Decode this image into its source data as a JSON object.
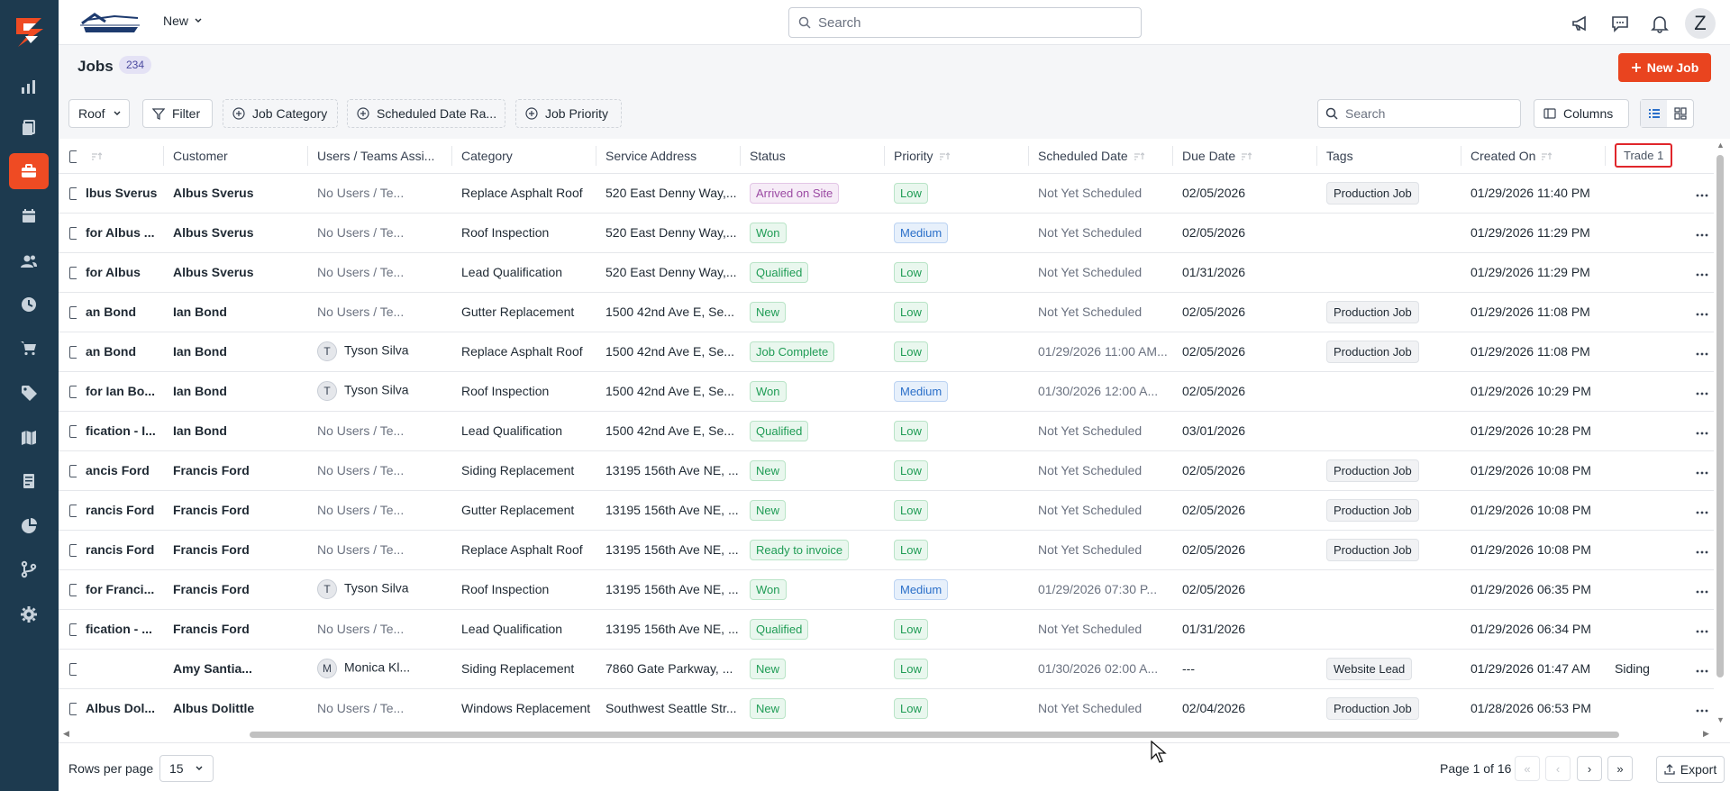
{
  "brand": {
    "new_menu_label": "New"
  },
  "top_search": {
    "placeholder": "Search"
  },
  "user": {
    "initial": "Z"
  },
  "page": {
    "title": "Jobs",
    "count": "234",
    "new_job_label": "New Job"
  },
  "filters": {
    "roof_label": "Roof",
    "filter_label": "Filter",
    "job_category_label": "Job Category",
    "scheduled_date_label": "Scheduled Date Ra...",
    "job_priority_label": "Job Priority",
    "search_placeholder": "Search",
    "columns_label": "Columns"
  },
  "table": {
    "headers": {
      "customer": "Customer",
      "users": "Users / Teams Assi...",
      "category": "Category",
      "address": "Service Address",
      "status": "Status",
      "priority": "Priority",
      "scheduled": "Scheduled Date",
      "due": "Due Date",
      "tags": "Tags",
      "created": "Created On",
      "trade": "Trade 1"
    },
    "rows": [
      {
        "name": "lbus Sverus",
        "customer": "Albus Sverus",
        "user_initial": "",
        "user": "No Users / Te...",
        "category": "Replace Asphalt Roof",
        "address": "520 East Denny Way,...",
        "status": "Arrived on Site",
        "status_class": "st-arrived",
        "priority": "Low",
        "scheduled": "Not Yet Scheduled",
        "due": "02/05/2026",
        "tag": "Production Job",
        "created": "01/29/2026 11:40 PM",
        "trade": ""
      },
      {
        "name": "for Albus ...",
        "customer": "Albus Sverus",
        "user_initial": "",
        "user": "No Users / Te...",
        "category": "Roof Inspection",
        "address": "520 East Denny Way,...",
        "status": "Won",
        "status_class": "st-won",
        "priority": "Medium",
        "scheduled": "Not Yet Scheduled",
        "due": "02/05/2026",
        "tag": "",
        "created": "01/29/2026 11:29 PM",
        "trade": ""
      },
      {
        "name": "for Albus",
        "customer": "Albus Sverus",
        "user_initial": "",
        "user": "No Users / Te...",
        "category": "Lead Qualification",
        "address": "520 East Denny Way,...",
        "status": "Qualified",
        "status_class": "st-qualified",
        "priority": "Low",
        "scheduled": "Not Yet Scheduled",
        "due": "01/31/2026",
        "tag": "",
        "created": "01/29/2026 11:29 PM",
        "trade": ""
      },
      {
        "name": "an Bond",
        "customer": "Ian Bond",
        "user_initial": "",
        "user": "No Users / Te...",
        "category": "Gutter Replacement",
        "address": "1500 42nd Ave E, Se...",
        "status": "New",
        "status_class": "st-new",
        "priority": "Low",
        "scheduled": "Not Yet Scheduled",
        "due": "02/05/2026",
        "tag": "Production Job",
        "created": "01/29/2026 11:08 PM",
        "trade": ""
      },
      {
        "name": "an Bond",
        "customer": "Ian Bond",
        "user_initial": "T",
        "user": "Tyson Silva",
        "category": "Replace Asphalt Roof",
        "address": "1500 42nd Ave E, Se...",
        "status": "Job Complete",
        "status_class": "st-complete",
        "priority": "Low",
        "scheduled": "01/29/2026 11:00 AM...",
        "due": "02/05/2026",
        "tag": "Production Job",
        "created": "01/29/2026 11:08 PM",
        "trade": ""
      },
      {
        "name": "for Ian Bo...",
        "customer": "Ian Bond",
        "user_initial": "T",
        "user": "Tyson Silva",
        "category": "Roof Inspection",
        "address": "1500 42nd Ave E, Se...",
        "status": "Won",
        "status_class": "st-won",
        "priority": "Medium",
        "scheduled": "01/30/2026 12:00 A...",
        "due": "02/05/2026",
        "tag": "",
        "created": "01/29/2026 10:29 PM",
        "trade": ""
      },
      {
        "name": "fication - I...",
        "customer": "Ian Bond",
        "user_initial": "",
        "user": "No Users / Te...",
        "category": "Lead Qualification",
        "address": "1500 42nd Ave E, Se...",
        "status": "Qualified",
        "status_class": "st-qualified",
        "priority": "Low",
        "scheduled": "Not Yet Scheduled",
        "due": "03/01/2026",
        "tag": "",
        "created": "01/29/2026 10:28 PM",
        "trade": ""
      },
      {
        "name": "ancis Ford",
        "customer": "Francis Ford",
        "user_initial": "",
        "user": "No Users / Te...",
        "category": "Siding Replacement",
        "address": "13195 156th Ave NE, ...",
        "status": "New",
        "status_class": "st-new",
        "priority": "Low",
        "scheduled": "Not Yet Scheduled",
        "due": "02/05/2026",
        "tag": "Production Job",
        "created": "01/29/2026 10:08 PM",
        "trade": ""
      },
      {
        "name": "rancis Ford",
        "customer": "Francis Ford",
        "user_initial": "",
        "user": "No Users / Te...",
        "category": "Gutter Replacement",
        "address": "13195 156th Ave NE, ...",
        "status": "New",
        "status_class": "st-new",
        "priority": "Low",
        "scheduled": "Not Yet Scheduled",
        "due": "02/05/2026",
        "tag": "Production Job",
        "created": "01/29/2026 10:08 PM",
        "trade": ""
      },
      {
        "name": "rancis Ford",
        "customer": "Francis Ford",
        "user_initial": "",
        "user": "No Users / Te...",
        "category": "Replace Asphalt Roof",
        "address": "13195 156th Ave NE, ...",
        "status": "Ready to invoice",
        "status_class": "st-invoice",
        "priority": "Low",
        "scheduled": "Not Yet Scheduled",
        "due": "02/05/2026",
        "tag": "Production Job",
        "created": "01/29/2026 10:08 PM",
        "trade": ""
      },
      {
        "name": "for Franci...",
        "customer": "Francis Ford",
        "user_initial": "T",
        "user": "Tyson Silva",
        "category": "Roof Inspection",
        "address": "13195 156th Ave NE, ...",
        "status": "Won",
        "status_class": "st-won",
        "priority": "Medium",
        "scheduled": "01/29/2026 07:30 P...",
        "due": "02/05/2026",
        "tag": "",
        "created": "01/29/2026 06:35 PM",
        "trade": ""
      },
      {
        "name": "fication - ...",
        "customer": "Francis Ford",
        "user_initial": "",
        "user": "No Users / Te...",
        "category": "Lead Qualification",
        "address": "13195 156th Ave NE, ...",
        "status": "Qualified",
        "status_class": "st-qualified",
        "priority": "Low",
        "scheduled": "Not Yet Scheduled",
        "due": "01/31/2026",
        "tag": "",
        "created": "01/29/2026 06:34 PM",
        "trade": ""
      },
      {
        "name": "",
        "customer": "Amy Santia...",
        "user_initial": "M",
        "user": "Monica Kl...",
        "category": "Siding Replacement",
        "address": "7860 Gate Parkway, ...",
        "status": "New",
        "status_class": "st-new",
        "priority": "Low",
        "scheduled": "01/30/2026 02:00 A...",
        "due": "---",
        "tag": "Website Lead",
        "created": "01/29/2026 01:47 AM",
        "trade": "Siding"
      },
      {
        "name": "Albus Dol...",
        "customer": "Albus Dolittle",
        "user_initial": "",
        "user": "No Users / Te...",
        "category": "Windows Replacement",
        "address": "Southwest Seattle Str...",
        "status": "New",
        "status_class": "st-new",
        "priority": "Low",
        "scheduled": "Not Yet Scheduled",
        "due": "02/04/2026",
        "tag": "Production Job",
        "created": "01/28/2026 06:53 PM",
        "trade": ""
      }
    ]
  },
  "footer": {
    "rows_per_page_label": "Rows per page",
    "rows_per_page_value": "15",
    "page_info": "Page 1 of 16",
    "export_label": "Export"
  },
  "colors": {
    "accent": "#e9441f",
    "sidebar": "#1d3a4f",
    "highlight_border": "#e0262b"
  }
}
